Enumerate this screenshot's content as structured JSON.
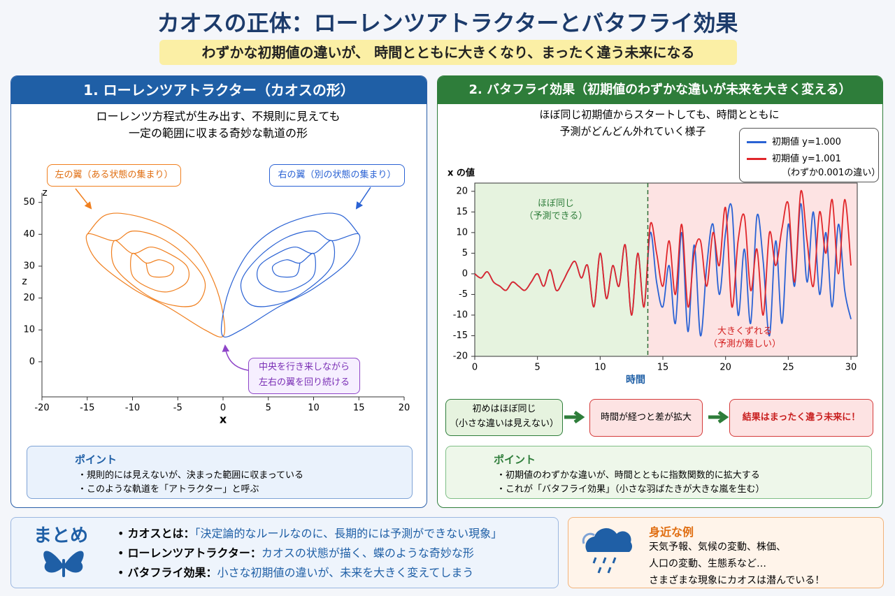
{
  "header": {
    "title": "カオスの正体：ローレンツアトラクターとバタフライ効果",
    "subtitle": "わずかな初期値の違いが、 時間とともに大きくなり、まったく違う未来になる"
  },
  "left_panel": {
    "heading": "1. ローレンツアトラクター（カオスの形）",
    "description": [
      "ローレンツ方程式が生み出す、不規則に見えても",
      "一定の範囲に収まる奇妙な軌道の形"
    ],
    "point_title": "ポイント",
    "points": [
      "・規則的には見えないが、決まった範囲に収まっている",
      "・このような軌道を「アトラクター」と呼ぶ"
    ]
  },
  "right_panel": {
    "heading": "2. バタフライ効果（初期値のわずかな違いが未来を大きく変える）",
    "description": [
      "ほぼ同じ初期値からスタートしても、時間とともに",
      "予測がどんどん外れていく様子"
    ],
    "flow": [
      [
        "初めはほぼ同じ",
        "（小さな違いは見えない）"
      ],
      [
        "時間が経つと差が拡大"
      ],
      [
        "結果はまったく違う未来に！"
      ]
    ],
    "point_title": "ポイント",
    "points": [
      "・初期値のわずかな違いが、時間とともに指数関数的に拡大する",
      "・これが「バタフライ効果」（小さな羽ばたきが大きな嵐を生む）"
    ]
  },
  "summary": {
    "title": "まとめ",
    "items": [
      {
        "term": "カオスとは：",
        "text": "「決定論的なルールなのに、長期的には予測ができない現象」"
      },
      {
        "term": "ローレンツアトラクター：",
        "text": "カオスの状態が描く、蝶のような奇妙な形"
      },
      {
        "term": "バタフライ効果：",
        "text": "小さな初期値の違いが、未来を大きく変えてしまう"
      }
    ]
  },
  "example": {
    "title": "身近な例",
    "lines": [
      "天気予報、気候の変動、株価、",
      "人口の変動、生態系など…",
      "さまざまな現象にカオスは潜んでいる！"
    ]
  },
  "chart_data": [
    {
      "type": "line",
      "xlabel": "x",
      "ylabel": "z",
      "xlim": [
        -20,
        20
      ],
      "ylim": [
        -11,
        53
      ],
      "xticks": [
        -20,
        -15,
        -10,
        -5,
        0,
        5,
        10,
        15,
        20
      ],
      "yticks": [
        0,
        10,
        20,
        30,
        40,
        50
      ],
      "annotations": [
        [
          "左の翼（ある状態の集まり）"
        ],
        [
          "右の翼（別の状態の集まり）"
        ],
        [
          "中央を行き来しながら",
          "左右の翼を回り続ける"
        ]
      ],
      "series": [
        {
          "color": "#f07f1e",
          "x": [
            -15,
            -13,
            -10,
            -6,
            -3,
            -1,
            0,
            0,
            -2,
            -6,
            -10,
            -14,
            -15,
            -12,
            -10,
            -7,
            -4,
            -2,
            -3,
            -6,
            -9,
            -12,
            -12,
            -10,
            -8,
            -6,
            -4,
            -4,
            -6,
            -8,
            -10,
            -10,
            -8.5,
            -7,
            -5.5,
            -6,
            -8,
            -8.5
          ],
          "values": [
            40,
            46,
            46,
            42,
            35,
            25,
            15,
            8,
            10,
            17,
            23,
            32,
            40,
            38,
            41,
            39,
            33,
            25,
            18,
            18,
            22,
            30,
            38,
            34,
            36,
            34,
            30,
            25,
            22,
            23,
            27,
            34,
            31,
            32,
            30,
            27,
            27,
            31
          ]
        },
        {
          "color": "#2a62d4",
          "x": [
            15,
            13,
            10,
            6,
            3,
            1,
            0,
            0,
            2,
            6,
            10,
            14,
            15,
            12,
            10,
            7,
            4,
            2,
            3,
            6,
            9,
            12,
            12,
            10,
            8,
            6,
            4,
            4,
            6,
            8,
            10,
            10,
            8.5,
            7,
            5.5,
            6,
            8,
            8.5
          ],
          "values": [
            40,
            46,
            46,
            42,
            35,
            25,
            15,
            8,
            10,
            17,
            23,
            32,
            40,
            38,
            41,
            39,
            33,
            25,
            18,
            18,
            22,
            30,
            38,
            34,
            36,
            34,
            30,
            25,
            22,
            23,
            27,
            34,
            31,
            32,
            30,
            27,
            27,
            31
          ]
        }
      ]
    },
    {
      "type": "line",
      "xlabel": "時間",
      "ylabel": "x の値",
      "xlim": [
        0,
        30.5
      ],
      "ylim": [
        -20,
        22
      ],
      "xticks": [
        0,
        5,
        10,
        15,
        20,
        25,
        30
      ],
      "yticks": [
        -20,
        -15,
        -10,
        -5,
        0,
        5,
        10,
        15,
        20
      ],
      "split_x": 13.8,
      "region_colors": [
        "#e6f3df",
        "#fde3e3"
      ],
      "annotations": [
        [
          "ほぼ同じ",
          "（予測できる）"
        ],
        [
          "大きくずれる",
          "（予測が難しい）"
        ]
      ],
      "legend_note": "（わずか0.001の違い）",
      "x": [
        0,
        0.5,
        1,
        1.5,
        2,
        2.5,
        3,
        3.5,
        4,
        4.5,
        5,
        5.5,
        6,
        6.5,
        7,
        7.5,
        8,
        8.5,
        9,
        9.5,
        10,
        10.5,
        11,
        11.5,
        12,
        12.5,
        13,
        13.5,
        14,
        14.5,
        15,
        15.5,
        16,
        16.5,
        17,
        17.5,
        18,
        18.5,
        19,
        19.5,
        20,
        20.5,
        21,
        21.5,
        22,
        22.5,
        23,
        23.5,
        24,
        24.5,
        25,
        25.5,
        26,
        26.5,
        27,
        27.5,
        28,
        28.5,
        29,
        29.5,
        30
      ],
      "series": [
        {
          "name": "初期値 y=1.000",
          "color": "#2a62d4",
          "values": [
            0,
            -1,
            0.5,
            -2,
            -3,
            -4,
            -2,
            -3,
            -4,
            -2,
            0,
            -3,
            1,
            -4,
            -2,
            1,
            3,
            -1,
            2,
            -8,
            5,
            -6,
            2,
            -3,
            7,
            -10,
            5,
            -8,
            10,
            -2,
            -8,
            2,
            -12,
            10,
            -14,
            7,
            -15,
            2,
            12,
            -5,
            10,
            16,
            -10,
            6,
            -12,
            14,
            3,
            -15,
            8,
            -12,
            12,
            -3,
            17,
            -2,
            15,
            -5,
            10,
            -8,
            12,
            -4,
            -11
          ]
        },
        {
          "name": "初期値 y=1.001",
          "color": "#e0262a",
          "values": [
            0,
            -1,
            0.5,
            -2,
            -3,
            -4,
            -2,
            -3,
            -4,
            -2,
            0,
            -3,
            1,
            -4,
            -2,
            1,
            3,
            -1,
            2,
            -8,
            5,
            -6,
            2,
            -3,
            7,
            -10,
            5,
            -8,
            12,
            5,
            -3,
            8,
            -5,
            12,
            -8,
            5,
            8,
            -3,
            10,
            2,
            16,
            -8,
            8,
            14,
            -4,
            6,
            -10,
            10,
            2,
            11,
            17,
            -2,
            20,
            8,
            -3,
            15,
            5,
            18,
            0,
            18,
            2
          ]
        }
      ]
    }
  ]
}
